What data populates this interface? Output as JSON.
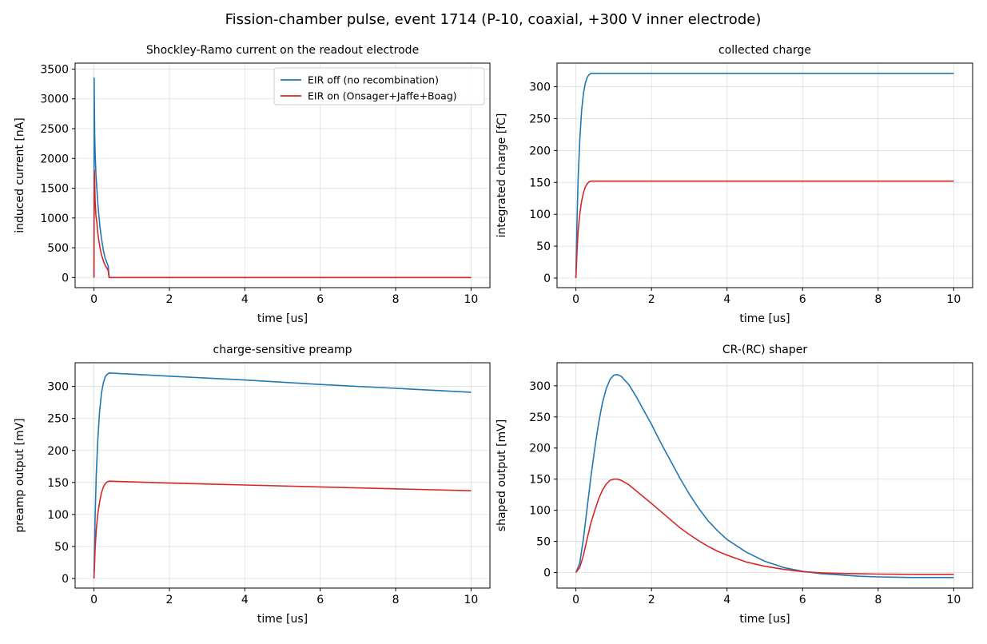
{
  "figure": {
    "title": "Fission-chamber pulse, event 1714 (P-10, coaxial, +300 V inner electrode)"
  },
  "colors": {
    "eir_off": "#1f77b4",
    "eir_on": "#d62728"
  },
  "legend": {
    "placement": "upper-right of first panel",
    "entries": [
      {
        "label": "EIR off (no recombination)",
        "color": "#1f77b4"
      },
      {
        "label": "EIR on (Onsager+Jaffe+Boag)",
        "color": "#d62728"
      }
    ]
  },
  "chart_data": [
    {
      "type": "line",
      "title": "Shockley-Ramo current on the readout electrode",
      "xlabel": "time [us]",
      "ylabel": "induced current [nA]",
      "xlim": [
        -0.5,
        10.5
      ],
      "ylim": [
        -170,
        3600
      ],
      "xticks": [
        0,
        2,
        4,
        6,
        8,
        10
      ],
      "yticks": [
        0,
        500,
        1000,
        1500,
        2000,
        2500,
        3000,
        3500
      ],
      "grid": true,
      "legend": "upper right",
      "series": [
        {
          "name": "EIR off (no recombination)",
          "color": "#1f77b4",
          "x": [
            0,
            0.005,
            0.01,
            0.02,
            0.03,
            0.05,
            0.08,
            0.1,
            0.13,
            0.16,
            0.2,
            0.25,
            0.3,
            0.35,
            0.38,
            0.39,
            0.4,
            1,
            2,
            4,
            6,
            8,
            10
          ],
          "y": [
            0,
            3350,
            2900,
            2400,
            2100,
            1750,
            1450,
            1250,
            1050,
            850,
            650,
            450,
            320,
            240,
            180,
            80,
            0,
            0,
            0,
            0,
            0,
            0,
            0
          ]
        },
        {
          "name": "EIR on (Onsager+Jaffe+Boag)",
          "color": "#d62728",
          "x": [
            0,
            0.005,
            0.01,
            0.02,
            0.03,
            0.05,
            0.08,
            0.1,
            0.13,
            0.16,
            0.2,
            0.25,
            0.3,
            0.35,
            0.38,
            0.39,
            0.4,
            1,
            2,
            4,
            6,
            8,
            10
          ],
          "y": [
            0,
            1000,
            1800,
            1600,
            1300,
            1050,
            900,
            750,
            620,
            500,
            380,
            280,
            200,
            150,
            110,
            50,
            0,
            0,
            0,
            0,
            0,
            0,
            0
          ]
        }
      ]
    },
    {
      "type": "line",
      "title": "collected charge",
      "xlabel": "time [us]",
      "ylabel": "integrated charge [fC]",
      "xlim": [
        -0.5,
        10.5
      ],
      "ylim": [
        -15,
        337
      ],
      "xticks": [
        0,
        2,
        4,
        6,
        8,
        10
      ],
      "yticks": [
        0,
        50,
        100,
        150,
        200,
        250,
        300
      ],
      "grid": true,
      "series": [
        {
          "name": "EIR off (no recombination)",
          "color": "#1f77b4",
          "x": [
            0,
            0.01,
            0.03,
            0.06,
            0.1,
            0.15,
            0.2,
            0.25,
            0.3,
            0.35,
            0.4,
            1,
            2,
            4,
            6,
            8,
            10
          ],
          "y": [
            0,
            35,
            95,
            160,
            215,
            262,
            290,
            306,
            315,
            319,
            321,
            321,
            321,
            321,
            321,
            321,
            321
          ]
        },
        {
          "name": "EIR on (Onsager+Jaffe+Boag)",
          "color": "#d62728",
          "x": [
            0,
            0.01,
            0.03,
            0.06,
            0.1,
            0.15,
            0.2,
            0.25,
            0.3,
            0.35,
            0.4,
            1,
            2,
            4,
            6,
            8,
            10
          ],
          "y": [
            0,
            15,
            45,
            75,
            100,
            120,
            134,
            143,
            148,
            151,
            152,
            152,
            152,
            152,
            152,
            152,
            152
          ]
        }
      ]
    },
    {
      "type": "line",
      "title": "charge-sensitive preamp",
      "xlabel": "time [us]",
      "ylabel": "preamp output [mV]",
      "xlim": [
        -0.5,
        10.5
      ],
      "ylim": [
        -15,
        337
      ],
      "xticks": [
        0,
        2,
        4,
        6,
        8,
        10
      ],
      "yticks": [
        0,
        50,
        100,
        150,
        200,
        250,
        300
      ],
      "grid": true,
      "series": [
        {
          "name": "EIR off (no recombination)",
          "color": "#1f77b4",
          "x": [
            0,
            0.01,
            0.03,
            0.06,
            0.1,
            0.15,
            0.2,
            0.25,
            0.3,
            0.35,
            0.4,
            2,
            4,
            6,
            8,
            10
          ],
          "y": [
            0,
            35,
            95,
            160,
            215,
            262,
            290,
            306,
            315,
            319,
            321,
            316,
            310,
            303,
            297,
            291
          ]
        },
        {
          "name": "EIR on (Onsager+Jaffe+Boag)",
          "color": "#d62728",
          "x": [
            0,
            0.01,
            0.03,
            0.06,
            0.1,
            0.15,
            0.2,
            0.25,
            0.3,
            0.35,
            0.4,
            2,
            4,
            6,
            8,
            10
          ],
          "y": [
            0,
            15,
            45,
            75,
            100,
            120,
            134,
            143,
            148,
            151,
            152,
            149,
            146,
            143,
            140,
            137
          ]
        }
      ]
    },
    {
      "type": "line",
      "title": "CR-(RC) shaper",
      "xlabel": "time [us]",
      "ylabel": "shaped output [mV]",
      "xlim": [
        -0.5,
        10.5
      ],
      "ylim": [
        -25,
        337
      ],
      "xticks": [
        0,
        2,
        4,
        6,
        8,
        10
      ],
      "yticks": [
        0,
        50,
        100,
        150,
        200,
        250,
        300
      ],
      "grid": true,
      "series": [
        {
          "name": "EIR off (no recombination)",
          "color": "#1f77b4",
          "x": [
            0,
            0.1,
            0.2,
            0.3,
            0.4,
            0.5,
            0.6,
            0.7,
            0.8,
            0.9,
            1.0,
            1.1,
            1.2,
            1.4,
            1.6,
            1.8,
            2.0,
            2.25,
            2.5,
            2.75,
            3.0,
            3.25,
            3.5,
            3.75,
            4.0,
            4.5,
            5.0,
            5.5,
            6.0,
            6.5,
            7.0,
            7.5,
            8.0,
            8.5,
            9.0,
            9.5,
            10.0
          ],
          "y": [
            0,
            15,
            55,
            105,
            155,
            200,
            240,
            272,
            295,
            310,
            317,
            318,
            315,
            302,
            282,
            260,
            238,
            208,
            180,
            152,
            126,
            103,
            83,
            67,
            53,
            33,
            18,
            8,
            2,
            -2,
            -4,
            -6,
            -7,
            -7.5,
            -8,
            -8,
            -8
          ]
        },
        {
          "name": "EIR on (Onsager+Jaffe+Boag)",
          "color": "#d62728",
          "x": [
            0,
            0.1,
            0.2,
            0.3,
            0.4,
            0.5,
            0.6,
            0.7,
            0.8,
            0.9,
            1.0,
            1.1,
            1.2,
            1.4,
            1.6,
            1.8,
            2.0,
            2.25,
            2.5,
            2.75,
            3.0,
            3.25,
            3.5,
            3.75,
            4.0,
            4.5,
            5.0,
            5.5,
            6.0,
            6.5,
            7.0,
            7.5,
            8.0,
            8.5,
            9.0,
            9.5,
            10.0
          ],
          "y": [
            0,
            8,
            28,
            55,
            80,
            100,
            118,
            132,
            142,
            148,
            150,
            150,
            148,
            141,
            131,
            121,
            111,
            98,
            85,
            72,
            61,
            51,
            42,
            34,
            28,
            17,
            10,
            5,
            1.5,
            -0.5,
            -1.5,
            -2,
            -2.5,
            -2.8,
            -3,
            -3,
            -3
          ]
        }
      ]
    }
  ]
}
